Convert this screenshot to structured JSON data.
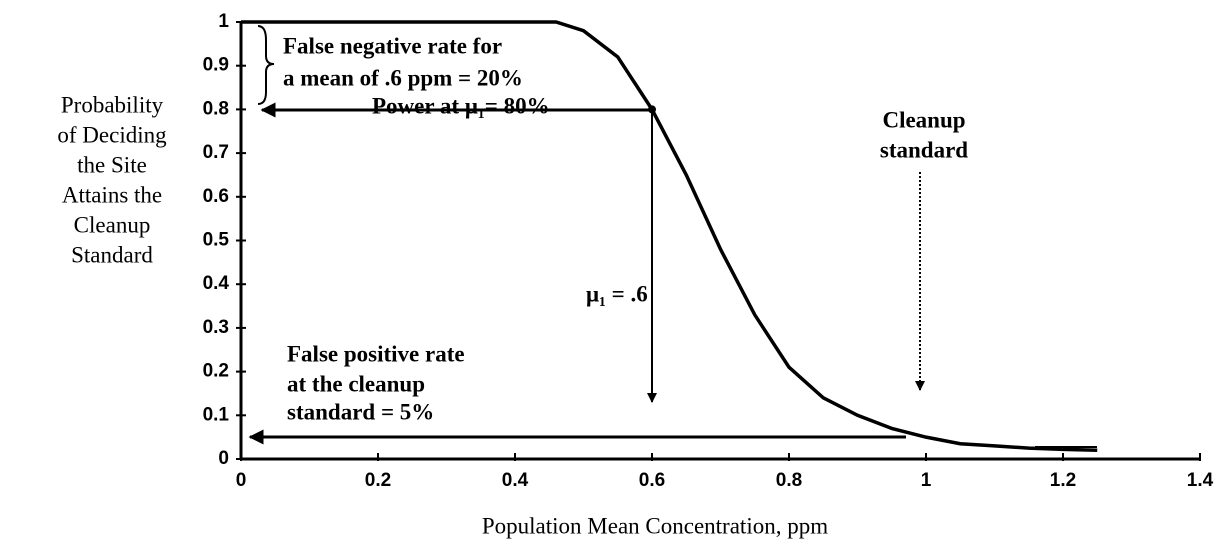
{
  "chart_data": {
    "type": "line",
    "xlabel": "Population Mean Concentration, ppm",
    "ylabel": [
      "Probability",
      "of Deciding",
      "the Site",
      "Attains the",
      "Cleanup",
      "Standard"
    ],
    "annotations": [
      "False negative rate for",
      "a mean of .6 ppm = 20%",
      "Power at μ₁= 80%",
      "Cleanup",
      "standard",
      "μ₁ = .6",
      "False positive rate",
      "at the cleanup",
      "standard = 5%"
    ],
    "x": [
      0,
      0.46,
      0.5,
      0.55,
      0.6,
      0.65,
      0.7,
      0.75,
      0.8,
      0.85,
      0.9,
      0.95,
      1.0,
      1.05,
      1.1,
      1.15,
      1.2,
      1.25
    ],
    "series": [
      {
        "color": "#000000",
        "values": [
          1,
          1,
          0.98,
          0.92,
          0.8,
          0.65,
          0.48,
          0.33,
          0.21,
          0.14,
          0.1,
          0.07,
          0.05,
          0.035,
          0.03,
          0.025,
          0.022,
          0.02
        ]
      }
    ],
    "xlim": [
      0,
      1.4
    ],
    "xticks": [
      0,
      0.2,
      0.4,
      0.6,
      0.8,
      1,
      1.2,
      1.4
    ],
    "ylim": [
      0,
      1
    ],
    "yticks": [
      0,
      0.1,
      0.2,
      0.3,
      0.4,
      0.5,
      0.6,
      0.7,
      0.8,
      0.9,
      1
    ]
  }
}
